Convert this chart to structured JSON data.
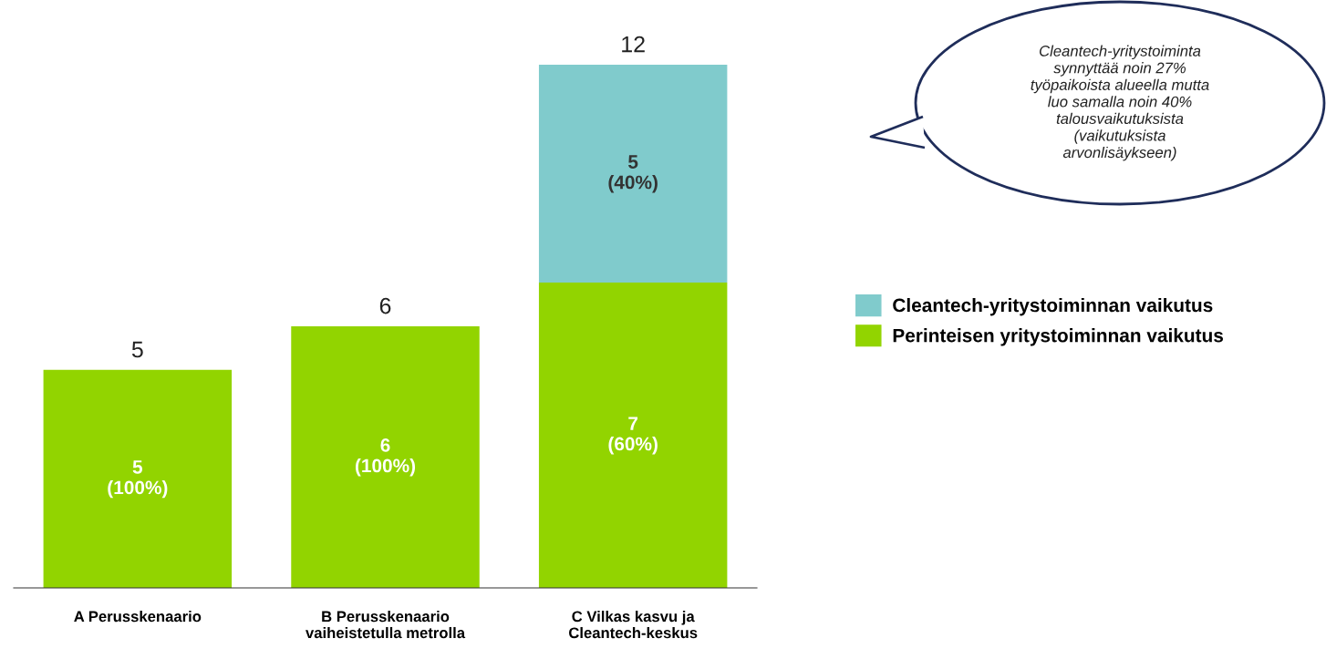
{
  "chart_data": {
    "type": "bar",
    "stacked": true,
    "legend": "right",
    "categories": [
      "A Perusskenaario",
      "B Perusskenaario\nvaiheistetulla metrolla",
      "C Vilkas kasvu ja\nCleantech-keskus"
    ],
    "series": [
      {
        "name": "Perinteisen yritystoiminnan vaikutus",
        "color": "#92d400",
        "values": [
          5,
          6,
          7
        ],
        "value_labels": [
          "5\n(100%)",
          "6\n(100%)",
          "7\n(60%)"
        ]
      },
      {
        "name": "Cleantech-yritystoiminnan vaikutus",
        "color": "#80cbcc",
        "values": [
          null,
          null,
          5
        ],
        "value_labels": [
          null,
          null,
          "5\n(40%)"
        ]
      }
    ],
    "totals": [
      "5",
      "6",
      "12"
    ],
    "annotations": [
      "Cleantech-yritystoiminta\nsynnyttää noin 27%\ntyöpaikoista alueella mutta\nluo samalla noin 40%\ntalousvaikutuksista\n(vaikutuksista\narvonlisäykseen)"
    ]
  }
}
